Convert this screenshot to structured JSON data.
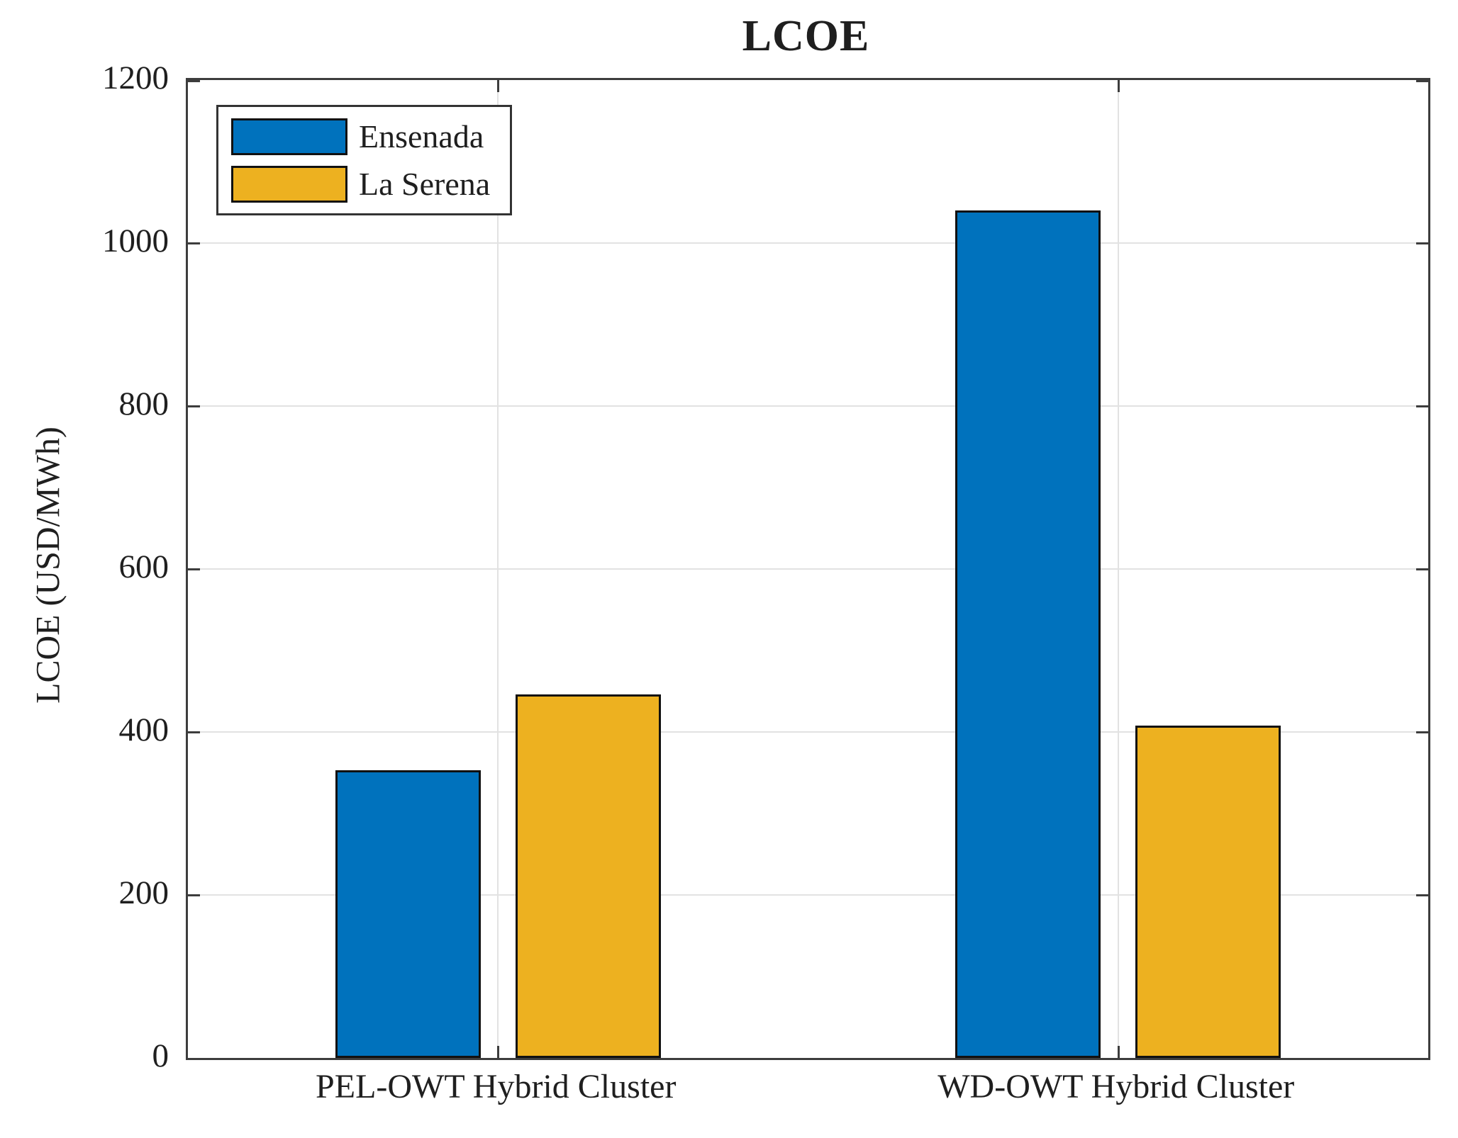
{
  "chart_data": {
    "type": "bar",
    "title": "LCOE",
    "ylabel": "LCOE (USD/MWh)",
    "xlabel": "",
    "categories": [
      "PEL-OWT Hybrid Cluster",
      "WD-OWT Hybrid Cluster"
    ],
    "series": [
      {
        "name": "Ensenada",
        "color": "#0072BD",
        "values": [
          353,
          1040
        ]
      },
      {
        "name": "La Serena",
        "color": "#EDB120",
        "values": [
          446,
          408
        ]
      }
    ],
    "ylim": [
      0,
      1200
    ],
    "yticks": [
      0,
      200,
      400,
      600,
      800,
      1000,
      1200
    ],
    "grid": true,
    "legend_position": "top-left",
    "colors": {
      "bar_edge": "#111111",
      "axis": "#3d3d3d",
      "gridline": "#e2e2e2",
      "text": "#1f1f1f"
    }
  }
}
